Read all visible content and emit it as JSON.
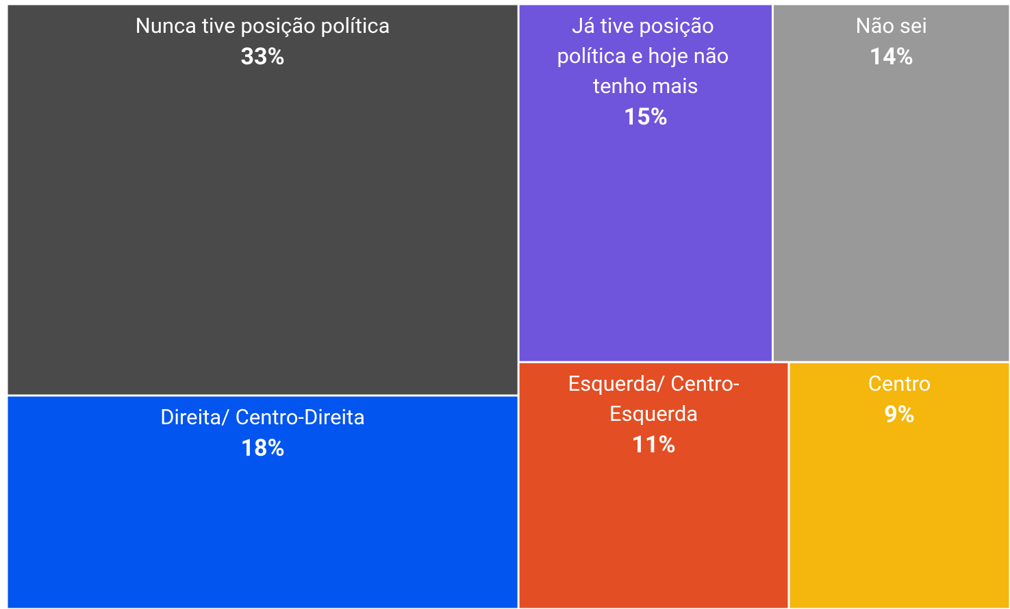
{
  "chart_data": {
    "type": "treemap",
    "categories": [
      "Nunca tive posição política",
      "Direita/ Centro-Direita",
      "Já tive posição política e hoje não tenho mais",
      "Não sei",
      "Esquerda/ Centro-Esquerda",
      "Centro"
    ],
    "values": [
      33,
      18,
      15,
      14,
      11,
      9
    ],
    "value_labels": [
      "33%",
      "18%",
      "15%",
      "14%",
      "11%",
      "9%"
    ],
    "colors": [
      "#4a4a4a",
      "#0255ee",
      "#6e55db",
      "#999999",
      "#e34e24",
      "#f5b60d"
    ]
  }
}
